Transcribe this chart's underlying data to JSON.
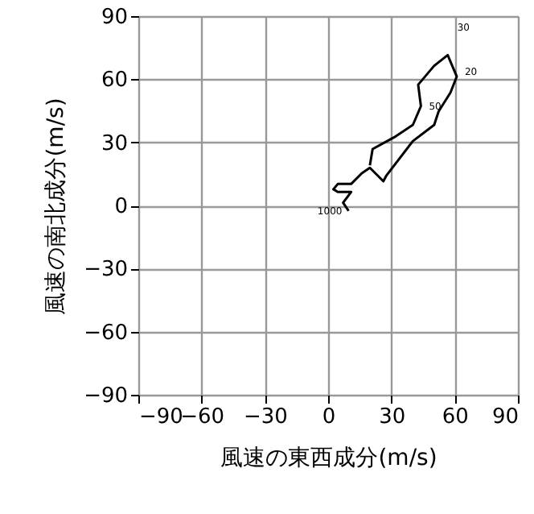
{
  "chart_data": {
    "type": "line",
    "xlabel": "風速の東西成分(m/s)",
    "ylabel": "風速の南北成分(m/s)",
    "x": [
      9.7,
      7.1,
      10.9,
      4.6,
      2.5,
      4.6,
      10.9,
      16.0,
      19.8,
      26.2,
      27.5,
      40.2,
      50.3,
      52.4,
      58.0,
      61.0,
      56.7,
      50.3,
      42.7,
      44.0,
      40.2,
      31.3,
      21.1,
      19.8
    ],
    "series": [
      {
        "color": "#000000",
        "values": [
          -2.6,
          1.3,
          6.4,
          6.4,
          7.7,
          10.2,
          10.2,
          15.3,
          17.9,
          11.5,
          14.0,
          30.6,
          38.3,
          44.7,
          53.6,
          61.3,
          71.5,
          66.4,
          57.4,
          47.2,
          38.3,
          32.4,
          26.8,
          19.1
        ]
      }
    ],
    "xlim": [
      -90,
      90
    ],
    "ylim": [
      -90,
      90
    ],
    "xticks": [
      {
        "value": -90,
        "label": "−90"
      },
      {
        "value": -60,
        "label": "−60"
      },
      {
        "value": -30,
        "label": "−30"
      },
      0,
      30,
      60,
      90
    ],
    "yticks": [
      {
        "value": -90,
        "label": "−90"
      },
      {
        "value": -60,
        "label": "−60"
      },
      {
        "value": -30,
        "label": "−30"
      },
      0,
      30,
      60,
      90
    ],
    "grid": true,
    "annotations": [
      {
        "text": "30",
        "x": 56.7,
        "y": 71.5
      },
      {
        "text": "20",
        "x": 61.0,
        "y": 61.3
      },
      {
        "text": "50",
        "x": 44.0,
        "y": 47.2
      },
      {
        "text": "1000",
        "x": 9.7,
        "y": -2.6
      }
    ]
  }
}
